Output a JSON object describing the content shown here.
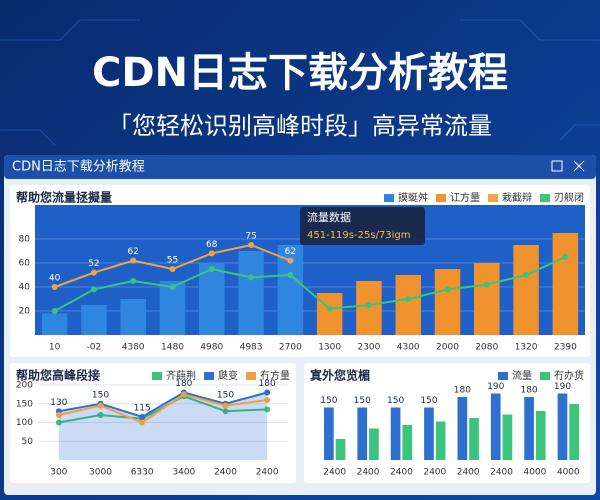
{
  "header": {
    "title": "CDN日志下载分析教程",
    "subtitle": "「您轻松识别高峰时段」高异常流量"
  },
  "window": {
    "title": "CDN日志下载分析教程"
  },
  "chart_data": [
    {
      "type": "combo",
      "title": "帮助您流量拯擬量",
      "legend": "top-right",
      "grid": true,
      "categories": [
        "10",
        "-02",
        "4380",
        "1480",
        "4980",
        "4983",
        "2700",
        "1300",
        "2300",
        "4300",
        "2000",
        "2080",
        "1320",
        "2390"
      ],
      "ylim": [
        0,
        100
      ],
      "yticks": [
        20,
        40,
        60,
        80
      ],
      "series": [
        {
          "name": "摸蜓舛",
          "color": "#2f86e0",
          "kind": "bar",
          "values": [
            18,
            25,
            30,
            45,
            60,
            70,
            75,
            null,
            null,
            null,
            null,
            null,
            null,
            null
          ]
        },
        {
          "name": "讧方量",
          "color": "#f0922e",
          "kind": "bar",
          "values": [
            null,
            null,
            null,
            null,
            null,
            null,
            null,
            35,
            45,
            50,
            55,
            60,
            75,
            85
          ]
        },
        {
          "name": "栽截辩",
          "color": "#f2a444",
          "kind": "line",
          "labels": true,
          "values": [
            40,
            52,
            62,
            55,
            68,
            75,
            62,
            null,
            null,
            null,
            null,
            null,
            null,
            null
          ]
        },
        {
          "name": "刃舰闭",
          "color": "#3cc47c",
          "kind": "line",
          "values": [
            20,
            38,
            45,
            40,
            55,
            48,
            50,
            22,
            25,
            30,
            38,
            42,
            50,
            65
          ]
        }
      ],
      "tooltip": {
        "title": "流量数据",
        "text": "451-119s-25s/73igm"
      }
    },
    {
      "type": "line",
      "title": "帮助您高峰段接",
      "legend": "top-right",
      "grid": true,
      "categories": [
        "300",
        "3000",
        "6330",
        "3400",
        "2400",
        "2400"
      ],
      "ylim": [
        0,
        200
      ],
      "yticks": [
        50,
        100,
        150,
        200
      ],
      "series": [
        {
          "name": "齐蕻荆",
          "color": "#3cc47c",
          "kind": "line",
          "values": [
            100,
            120,
            110,
            170,
            130,
            135
          ]
        },
        {
          "name": "瓞变",
          "color": "#2f6fd0",
          "kind": "line",
          "area": true,
          "labels": true,
          "values": [
            130,
            150,
            115,
            180,
            150,
            180
          ]
        },
        {
          "name": "冇方量",
          "color": "#f0a040",
          "kind": "line",
          "values": [
            120,
            145,
            100,
            175,
            145,
            160
          ]
        }
      ]
    },
    {
      "type": "bar",
      "title": "寘外您览楣",
      "legend": "top-right",
      "categories": [
        "2400",
        "2400",
        "2400",
        "2400",
        "2400",
        "2400",
        "4000",
        "4000"
      ],
      "ylim": [
        0,
        200
      ],
      "series": [
        {
          "name": "流量",
          "color": "#2f6fd0",
          "kind": "bar",
          "labels": true,
          "values": [
            150,
            150,
            150,
            150,
            180,
            190,
            180,
            190
          ]
        },
        {
          "name": "冇办货",
          "color": "#3cc47c",
          "kind": "bar",
          "values": [
            60,
            90,
            100,
            110,
            120,
            130,
            140,
            160
          ]
        }
      ]
    }
  ]
}
